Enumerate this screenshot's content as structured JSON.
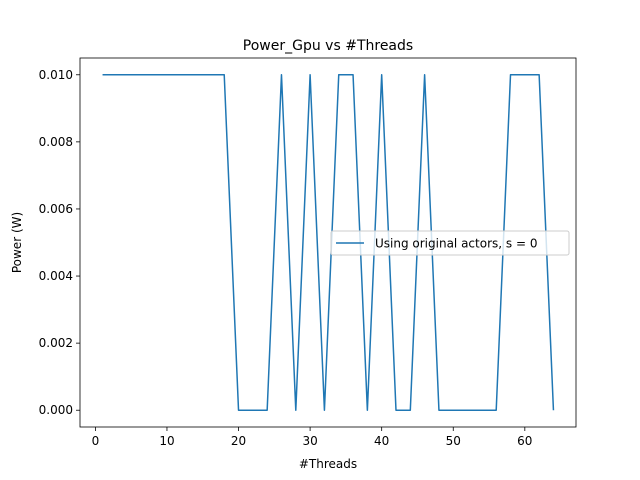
{
  "chart_data": {
    "type": "line",
    "title": "Power_Gpu vs #Threads",
    "xlabel": "#Threads",
    "ylabel": "Power (W)",
    "xlim": [
      -2.15,
      67.15
    ],
    "ylim": [
      -0.0005,
      0.0105
    ],
    "xticks": [
      0,
      10,
      20,
      30,
      40,
      50,
      60
    ],
    "yticks": [
      0.0,
      0.002,
      0.004,
      0.006,
      0.008,
      0.01
    ],
    "ytick_labels": [
      "0.000",
      "0.002",
      "0.004",
      "0.006",
      "0.008",
      "0.010"
    ],
    "grid": false,
    "legend_position": "center-right",
    "series": [
      {
        "name": "Using original actors, s = 0",
        "color": "#1f77b4",
        "x": [
          1,
          2,
          4,
          6,
          8,
          10,
          12,
          14,
          16,
          18,
          20,
          22,
          24,
          26,
          28,
          30,
          32,
          34,
          36,
          38,
          40,
          42,
          44,
          46,
          48,
          50,
          52,
          54,
          56,
          58,
          60,
          62,
          64
        ],
        "y": [
          0.01,
          0.01,
          0.01,
          0.01,
          0.01,
          0.01,
          0.01,
          0.01,
          0.01,
          0.01,
          0.0,
          0.0,
          0.0,
          0.01,
          0.0,
          0.01,
          0.0,
          0.01,
          0.01,
          0.0,
          0.01,
          0.0,
          0.0,
          0.01,
          0.0,
          0.0,
          0.0,
          0.0,
          0.0,
          0.01,
          0.01,
          0.01,
          0.0
        ]
      }
    ]
  }
}
